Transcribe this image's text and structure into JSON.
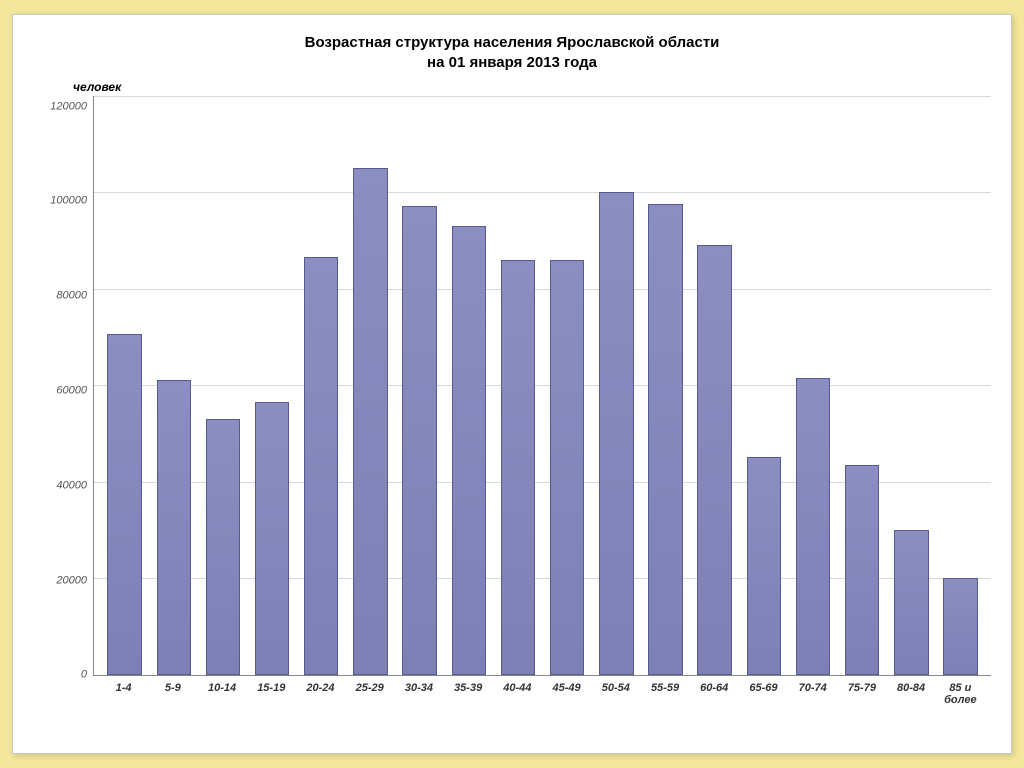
{
  "chart": {
    "type": "bar",
    "title_line1": "Возрастная структура населения Ярославской области",
    "title_line2": "на 01 января 2013 года",
    "title_fontsize": 15,
    "ylabel": "человек",
    "ylabel_fontsize": 12,
    "ymin": 0,
    "ymax": 120000,
    "ytick_step": 20000,
    "yticks": [
      "120000",
      "100000",
      "80000",
      "60000",
      "40000",
      "20000",
      "0"
    ],
    "tick_fontsize": 11,
    "xtick_fontsize": 11,
    "categories": [
      "1-4",
      "5-9",
      "10-14",
      "15-19",
      "20-24",
      "25-29",
      "30-34",
      "35-39",
      "40-44",
      "45-49",
      "50-54",
      "55-59",
      "60-64",
      "65-69",
      "70-74",
      "75-79",
      "80-84",
      "85 и более"
    ],
    "values": [
      70500,
      61000,
      53000,
      56500,
      86500,
      105000,
      97000,
      93000,
      86000,
      86000,
      100000,
      97500,
      89000,
      45000,
      61500,
      43500,
      30000,
      20000
    ],
    "bar_fill_top": "#8b8ec0",
    "bar_fill_bottom": "#7c80b5",
    "bar_border": "#565a91",
    "bar_width": 0.7,
    "grid_color": "#d9d9d9",
    "axis_color": "#888888",
    "background_color": "#ffffff",
    "page_background": "#f3e79b",
    "tick_color": "#555555",
    "xlabel_color": "#333333"
  }
}
